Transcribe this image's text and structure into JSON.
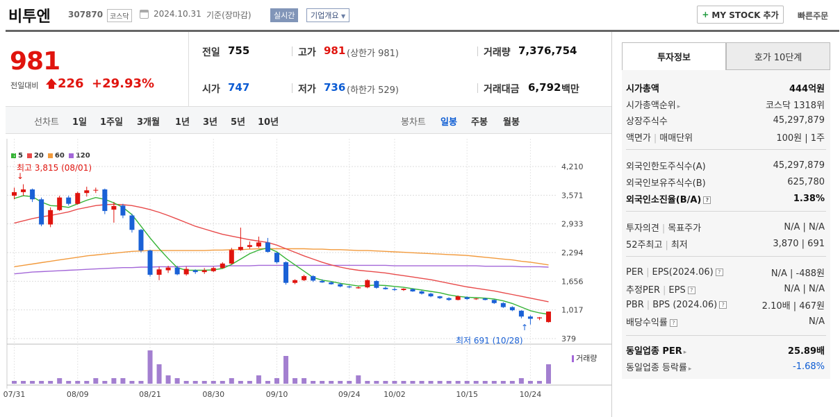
{
  "header": {
    "name": "비투엔",
    "code": "307870",
    "market": "코스닥",
    "date": "2024.10.31",
    "basis": "기준(장마감)",
    "realtime_label": "실시간",
    "company_overview_label": "기업개요",
    "mystock_label": "MY STOCK 추가",
    "quick_order_label": "빠른주문"
  },
  "price": {
    "current": "981",
    "change_label": "전일대비",
    "change": "226",
    "change_pct": "+29.93%"
  },
  "stats": {
    "prev_label": "전일",
    "prev": "755",
    "high_label": "고가",
    "high": "981",
    "upper_limit": "(상한가 981)",
    "volume_label": "거래량",
    "volume": "7,376,754",
    "open_label": "시가",
    "open": "747",
    "low_label": "저가",
    "low": "736",
    "lower_limit": "(하한가 529)",
    "amount_label": "거래대금",
    "amount": "6,792",
    "amount_unit": "백만"
  },
  "toolbar": {
    "line_chart_label": "선차트",
    "line_periods": [
      "1일",
      "1주일",
      "3개월",
      "1년",
      "3년",
      "5년",
      "10년"
    ],
    "candle_chart_label": "봉차트",
    "candle_periods": [
      "일봉",
      "주봉",
      "월봉"
    ],
    "active_candle": "일봉"
  },
  "chart_data": {
    "type": "candlestick",
    "legend": [
      {
        "name": "5",
        "color": "#35b335"
      },
      {
        "name": "20",
        "color": "#e84a4a"
      },
      {
        "name": "60",
        "color": "#f29a3c"
      },
      {
        "name": "120",
        "color": "#a367d8"
      }
    ],
    "y_ticks": [
      "4,210",
      "3,571",
      "2,933",
      "2,294",
      "1,656",
      "1,017",
      "379"
    ],
    "ylim": [
      379,
      4210
    ],
    "x_ticks": [
      "07/31",
      "08/09",
      "08/21",
      "08/30",
      "09/10",
      "09/24",
      "10/02",
      "10/15",
      "10/24"
    ],
    "x_tick_index": [
      0,
      7,
      15,
      22,
      29,
      37,
      42,
      50,
      57
    ],
    "high_annotation": "최고 3,815 (08/01)",
    "low_annotation": "최저 691 (10/28)",
    "volume_label": "거래량",
    "up_color": "#e0140e",
    "down_color": "#1a61d6",
    "candles": [
      [
        3560,
        3740,
        3480,
        3640
      ],
      [
        3640,
        3815,
        3560,
        3700
      ],
      [
        3700,
        3720,
        3420,
        3480
      ],
      [
        3480,
        3520,
        2880,
        2920
      ],
      [
        2920,
        3300,
        2860,
        3240
      ],
      [
        3240,
        3560,
        3220,
        3520
      ],
      [
        3520,
        3560,
        3340,
        3380
      ],
      [
        3380,
        3650,
        3360,
        3620
      ],
      [
        3620,
        3760,
        3540,
        3680
      ],
      [
        3680,
        3740,
        3620,
        3690
      ],
      [
        3700,
        3720,
        3150,
        3220
      ],
      [
        3250,
        3420,
        2960,
        3330
      ],
      [
        3340,
        3380,
        3060,
        3120
      ],
      [
        3120,
        3160,
        2740,
        2800
      ],
      [
        2800,
        2820,
        2300,
        2340
      ],
      [
        2340,
        2360,
        1760,
        1800
      ],
      [
        1800,
        1980,
        1680,
        1920
      ],
      [
        1900,
        2000,
        1840,
        1960
      ],
      [
        1960,
        2000,
        1790,
        1810
      ],
      [
        1810,
        1980,
        1780,
        1930
      ],
      [
        1900,
        1920,
        1820,
        1860
      ],
      [
        1860,
        1950,
        1820,
        1900
      ],
      [
        1880,
        1980,
        1860,
        1950
      ],
      [
        1950,
        2080,
        1940,
        2050
      ],
      [
        2050,
        2400,
        2030,
        2350
      ],
      [
        2350,
        2850,
        2330,
        2420
      ],
      [
        2420,
        2540,
        2380,
        2460
      ],
      [
        2430,
        2650,
        2400,
        2520
      ],
      [
        2520,
        2620,
        2290,
        2310
      ],
      [
        2290,
        2300,
        2050,
        2080
      ],
      [
        2080,
        2100,
        1580,
        1620
      ],
      [
        1620,
        1700,
        1590,
        1680
      ],
      [
        1680,
        1800,
        1660,
        1770
      ],
      [
        1770,
        1790,
        1640,
        1670
      ],
      [
        1660,
        1700,
        1620,
        1630
      ],
      [
        1630,
        1660,
        1580,
        1590
      ],
      [
        1590,
        1620,
        1520,
        1540
      ],
      [
        1540,
        1560,
        1500,
        1520
      ],
      [
        1500,
        1540,
        1490,
        1520
      ],
      [
        1520,
        1700,
        1500,
        1680
      ],
      [
        1660,
        1680,
        1490,
        1510
      ],
      [
        1510,
        1540,
        1470,
        1480
      ],
      [
        1480,
        1520,
        1440,
        1460
      ],
      [
        1460,
        1500,
        1440,
        1490
      ],
      [
        1480,
        1500,
        1420,
        1430
      ],
      [
        1430,
        1450,
        1360,
        1380
      ],
      [
        1380,
        1400,
        1300,
        1320
      ],
      [
        1320,
        1330,
        1260,
        1280
      ],
      [
        1280,
        1300,
        1220,
        1240
      ],
      [
        1240,
        1340,
        1230,
        1320
      ],
      [
        1300,
        1320,
        1240,
        1260
      ],
      [
        1260,
        1280,
        1240,
        1270
      ],
      [
        1270,
        1290,
        1230,
        1240
      ],
      [
        1240,
        1250,
        1150,
        1170
      ],
      [
        1170,
        1190,
        1060,
        1080
      ],
      [
        1080,
        1100,
        990,
        1010
      ],
      [
        1000,
        1010,
        830,
        870
      ],
      [
        870,
        900,
        691,
        820
      ],
      [
        830,
        860,
        790,
        850
      ],
      [
        747,
        981,
        736,
        981
      ]
    ],
    "ma5": [
      3500,
      3560,
      3540,
      3420,
      3340,
      3330,
      3300,
      3380,
      3460,
      3520,
      3480,
      3400,
      3300,
      3140,
      2880,
      2620,
      2380,
      2160,
      1960,
      1900,
      1900,
      1900,
      1910,
      1940,
      2030,
      2150,
      2270,
      2350,
      2400,
      2310,
      2160,
      2020,
      1880,
      1740,
      1680,
      1650,
      1610,
      1580,
      1550,
      1560,
      1570,
      1560,
      1540,
      1520,
      1490,
      1460,
      1430,
      1400,
      1350,
      1320,
      1300,
      1290,
      1280,
      1260,
      1220,
      1160,
      1080,
      1000,
      950,
      920
    ],
    "ma20": [
      2950,
      3000,
      3050,
      3090,
      3120,
      3160,
      3200,
      3260,
      3300,
      3340,
      3360,
      3370,
      3360,
      3340,
      3300,
      3250,
      3190,
      3120,
      3040,
      2960,
      2880,
      2820,
      2760,
      2700,
      2660,
      2620,
      2580,
      2550,
      2520,
      2460,
      2380,
      2300,
      2220,
      2150,
      2080,
      2020,
      1970,
      1930,
      1900,
      1880,
      1860,
      1840,
      1810,
      1780,
      1750,
      1720,
      1690,
      1650,
      1610,
      1570,
      1530,
      1500,
      1470,
      1440,
      1400,
      1360,
      1320,
      1280,
      1240,
      1200
    ],
    "ma60": [
      1980,
      2010,
      2040,
      2070,
      2100,
      2130,
      2160,
      2190,
      2220,
      2240,
      2260,
      2280,
      2300,
      2320,
      2330,
      2340,
      2340,
      2340,
      2340,
      2340,
      2340,
      2340,
      2350,
      2350,
      2360,
      2360,
      2370,
      2380,
      2380,
      2380,
      2380,
      2380,
      2380,
      2370,
      2370,
      2360,
      2360,
      2350,
      2340,
      2340,
      2330,
      2320,
      2310,
      2300,
      2290,
      2280,
      2270,
      2260,
      2250,
      2240,
      2230,
      2210,
      2190,
      2170,
      2150,
      2130,
      2100,
      2080,
      2050,
      2020
    ],
    "ma120": [
      1820,
      1840,
      1860,
      1870,
      1880,
      1890,
      1900,
      1910,
      1920,
      1930,
      1940,
      1950,
      1960,
      1960,
      1970,
      1970,
      1980,
      1980,
      1980,
      1990,
      1990,
      1990,
      1990,
      2000,
      2000,
      2000,
      2000,
      2010,
      2010,
      2010,
      2010,
      2010,
      2010,
      2010,
      2010,
      2010,
      2010,
      2010,
      2010,
      2010,
      2010,
      2010,
      2000,
      2000,
      2000,
      2000,
      2000,
      2000,
      2000,
      2000,
      2000,
      2000,
      1990,
      1990,
      1990,
      1990,
      1980,
      1980,
      1980,
      1970
    ],
    "volumes": [
      1,
      1,
      1,
      1,
      1,
      2,
      1,
      1,
      1,
      2,
      1,
      2,
      2,
      1,
      1,
      12,
      7,
      3,
      2,
      1,
      1,
      1,
      1,
      1,
      2,
      1,
      1,
      3,
      1,
      2,
      10,
      2,
      2,
      1,
      1,
      1,
      1,
      1,
      3,
      1,
      1,
      1,
      1,
      1,
      1,
      1,
      1,
      1,
      1,
      1,
      1,
      1,
      1,
      1,
      1,
      1,
      2,
      1,
      1,
      7
    ]
  },
  "tabs": {
    "active": "투자정보",
    "inactive": "호가 10단계"
  },
  "invest_info": {
    "market_cap_label": "시가총액",
    "market_cap": "444억원",
    "rank_label": "시가총액순위",
    "rank": "코스닥 1318위",
    "shares_label": "상장주식수",
    "shares": "45,297,879",
    "face_label": "액면가",
    "unit_label": "매매단위",
    "face_unit": "100원 | 1주",
    "foreign_limit_label": "외국인한도주식수(A)",
    "foreign_limit": "45,297,879",
    "foreign_hold_label": "외국인보유주식수(B)",
    "foreign_hold": "625,780",
    "foreign_ratio_label": "외국인소진율(B/A)",
    "foreign_ratio": "1.38%",
    "opinion_label": "투자의견",
    "target_label": "목표주가",
    "opinion_target": "N/A | N/A",
    "w52_label": "52주최고",
    "w52_low_label": "최저",
    "w52": "3,870 | 691",
    "per_label": "PER",
    "eps_label": "EPS(2024.06)",
    "per_eps": "N/A | -488원",
    "est_per_label": "추정PER",
    "est_eps_label": "EPS",
    "est_per_eps": "N/A | N/A",
    "pbr_label": "PBR",
    "bps_label": "BPS (2024.06)",
    "pbr_bps": "2.10배 | 467원",
    "div_label": "배당수익률",
    "div": "N/A",
    "industry_per_label": "동일업종 PER",
    "industry_per": "25.89배",
    "industry_chg_label": "동일업종 등락률",
    "industry_chg": "-1.68%"
  }
}
